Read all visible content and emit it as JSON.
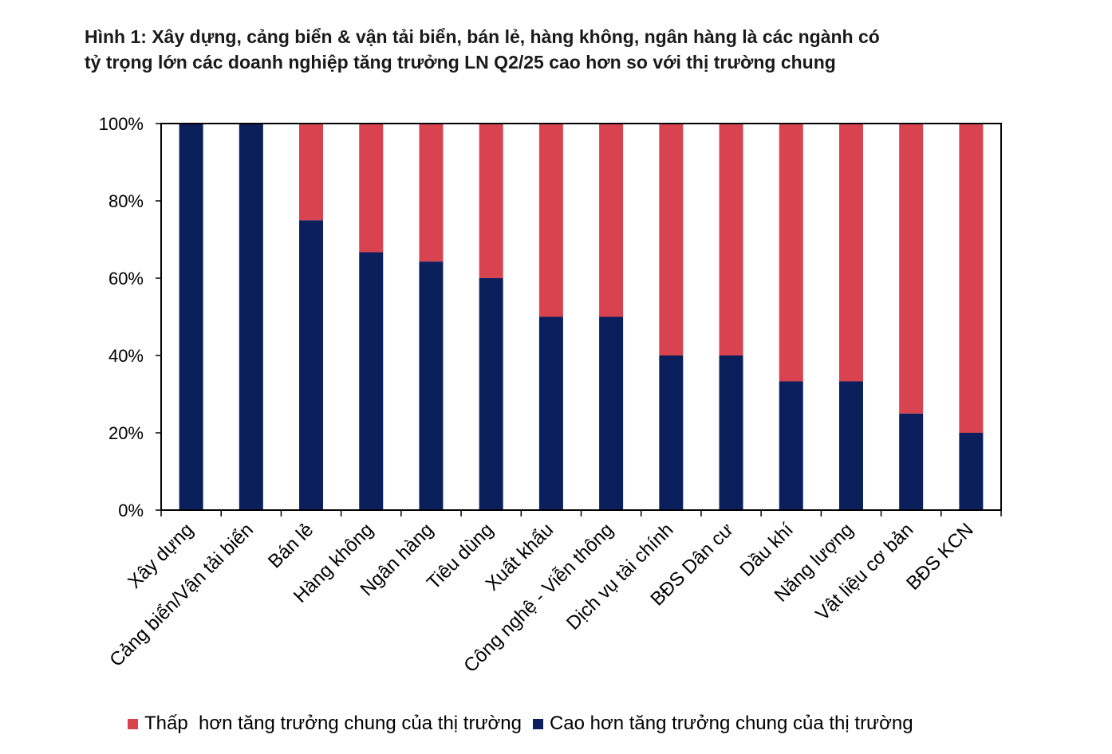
{
  "title": {
    "line1": "Hình 1: Xây dựng, cảng biển & vận tải biển, bán lẻ, hàng không, ngân hàng là các ngành có",
    "line2": "tỷ trọng lớn các doanh nghiệp tăng trưởng LN Q2/25 cao hơn so với thị trường chung"
  },
  "colors": {
    "lower": "#d9434f",
    "higher": "#0b1f5c"
  },
  "chart_data": {
    "type": "bar",
    "stacked": true,
    "categories": [
      "Xây dựng",
      "Cảng biển/Vận tải biển",
      "Bán lẻ",
      "Hàng không",
      "Ngân hàng",
      "Tiêu dùng",
      "Xuất khẩu",
      "Công nghệ - Viễn thông",
      "Dịch vụ tài chính",
      "BĐS Dân cư",
      "Dầu khí",
      "Năng lượng",
      "Vật liệu cơ bản",
      "BĐS KCN"
    ],
    "series": [
      {
        "name": "Cao hơn tăng trưởng chung của thị trường",
        "color": "#0b1f5c",
        "values": [
          100,
          100,
          75,
          66.7,
          64.3,
          60,
          50,
          50,
          40,
          40,
          33.3,
          33.3,
          25,
          20
        ]
      },
      {
        "name": "Thấp hơn tăng trưởng chung của thị trường",
        "color": "#d9434f",
        "values": [
          0,
          0,
          25,
          33.3,
          35.7,
          40,
          50,
          50,
          60,
          60,
          66.7,
          66.7,
          75,
          80
        ]
      }
    ],
    "ylim": [
      0,
      100
    ],
    "yticks": [
      "0%",
      "20%",
      "40%",
      "60%",
      "80%",
      "100%"
    ],
    "legend": [
      "Thấp  hơn tăng trưởng chung của thị trường",
      "Cao hơn tăng trưởng chung của thị trường"
    ],
    "legend_position": "bottom",
    "grid": false
  }
}
